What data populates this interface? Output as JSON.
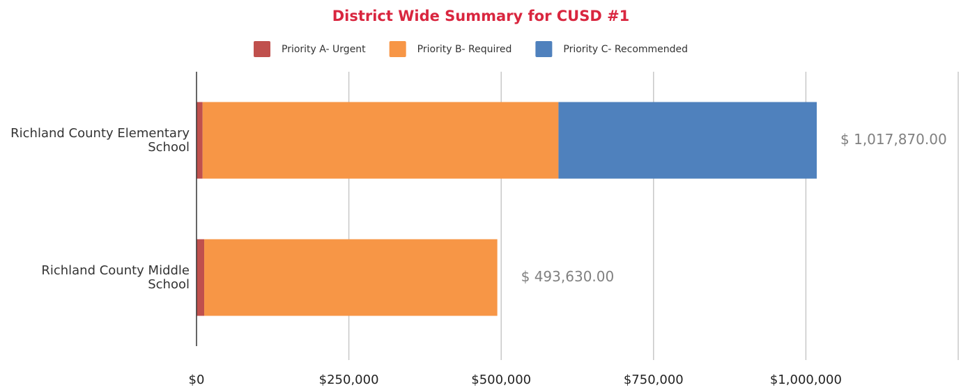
{
  "chart_data": {
    "type": "stacked_bar_horizontal",
    "title": "District Wide Summary for CUSD #1",
    "categories": [
      "Richland County Elementary School",
      "Richland County Middle School"
    ],
    "series": [
      {
        "name": "Priority A- Urgent",
        "color": "#c0504d",
        "values": [
          10000,
          12630
        ]
      },
      {
        "name": "Priority B- Required",
        "color": "#f79646",
        "values": [
          584000,
          481000
        ]
      },
      {
        "name": "Priority C- Recommended",
        "color": "#4f81bd",
        "values": [
          423870,
          null
        ]
      }
    ],
    "totals": [
      1017870,
      493630
    ],
    "total_labels": [
      "$ 1,017,870.00",
      "$ 493,630.00"
    ],
    "xlim": [
      0,
      1250000
    ],
    "xticks": [
      {
        "value": 0,
        "label": "$0"
      },
      {
        "value": 250000,
        "label": "$250,000"
      },
      {
        "value": 500000,
        "label": "$500,000"
      },
      {
        "value": 750000,
        "label": "$750,000"
      },
      {
        "value": 1000000,
        "label": "$1,000,000"
      }
    ],
    "grid": true,
    "legend": "top"
  }
}
